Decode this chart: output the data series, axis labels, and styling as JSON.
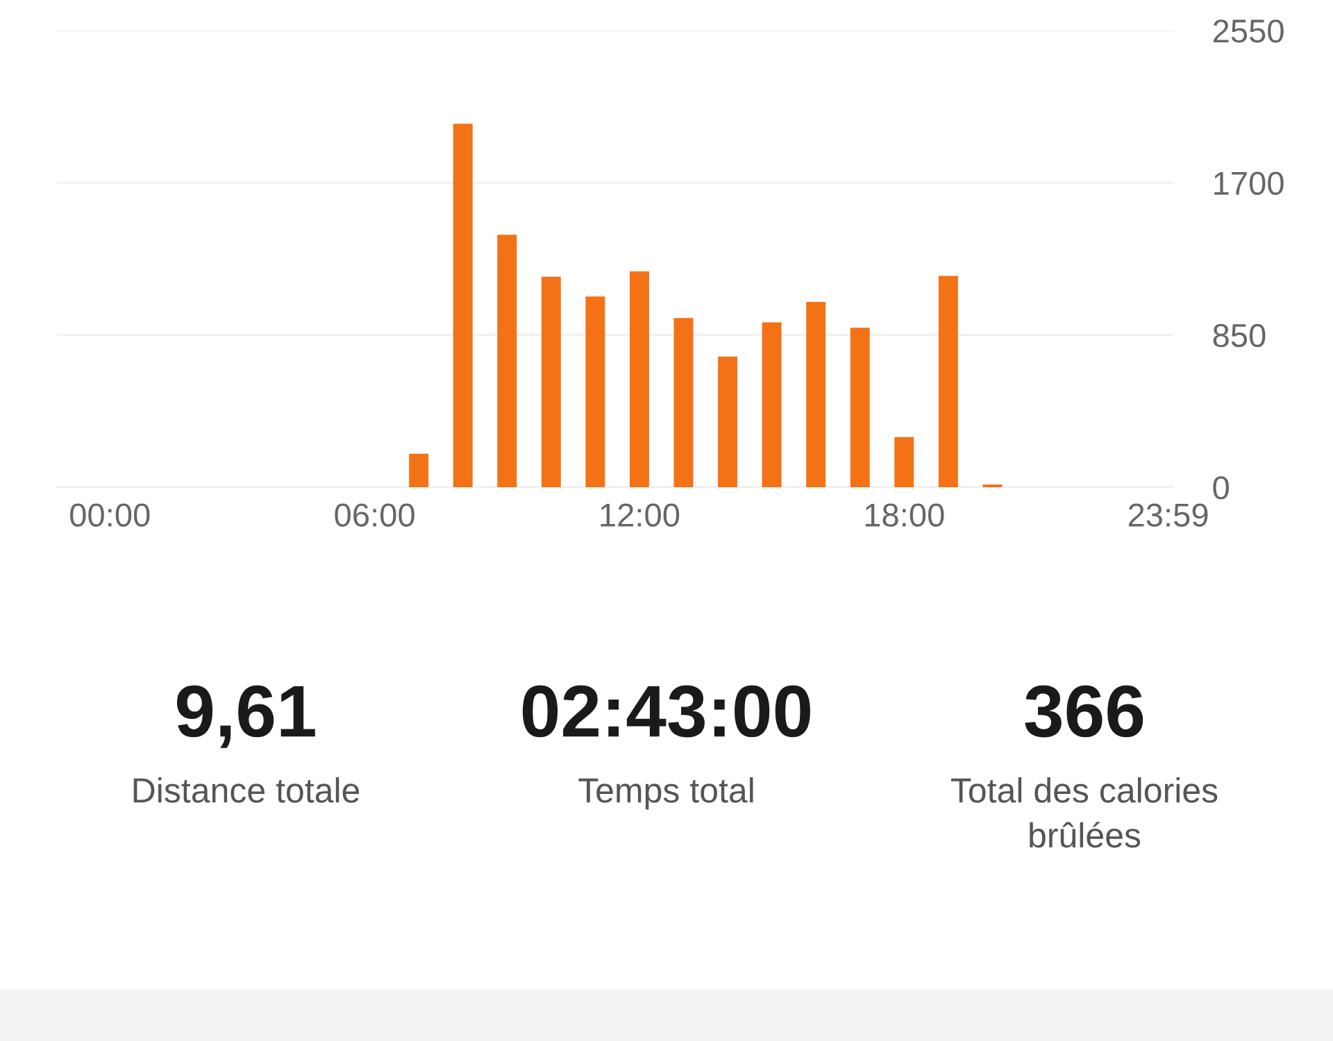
{
  "chart_data": {
    "type": "bar",
    "x": [
      7,
      8,
      9,
      10,
      11,
      12,
      13,
      14,
      15,
      16,
      17,
      18,
      19,
      20
    ],
    "values": [
      187,
      2030,
      1410,
      1175,
      1065,
      1205,
      945,
      730,
      920,
      1035,
      890,
      280,
      1180,
      15
    ],
    "color": "#f47216",
    "xlim": [
      -1.2,
      24.1
    ],
    "xticks": [
      {
        "value": 0,
        "label": "00:00"
      },
      {
        "value": 6,
        "label": "06:00"
      },
      {
        "value": 12,
        "label": "12:00"
      },
      {
        "value": 18,
        "label": "18:00"
      },
      {
        "value": 23.983,
        "label": "23:59"
      }
    ],
    "ylim": [
      0,
      2550
    ],
    "yticks": [
      0,
      850,
      1700,
      2550
    ],
    "grid": "y",
    "annotations": [
      "9,61",
      "Distance totale",
      "02:43:00",
      "Temps total",
      "366",
      "Total des calories\nbrûlées"
    ]
  }
}
